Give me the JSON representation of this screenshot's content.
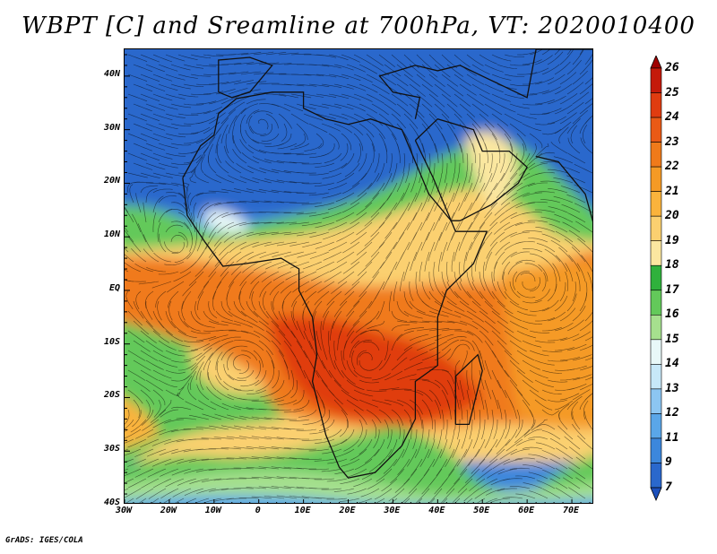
{
  "title": "WBPT [C] and Sreamline at 700hPa, VT: 2020010400",
  "footer": "GrADS: IGES/COLA",
  "map": {
    "variable": "Wet-bulb potential temperature (WBPT)",
    "unit": "C",
    "level": "700hPa",
    "valid_time": "2020010400",
    "lon_range": [
      -30,
      75
    ],
    "lat_range": [
      -40,
      45
    ],
    "lat_ticks": [
      {
        "value": 40,
        "label": "40N"
      },
      {
        "value": 30,
        "label": "30N"
      },
      {
        "value": 20,
        "label": "20N"
      },
      {
        "value": 10,
        "label": "10N"
      },
      {
        "value": 0,
        "label": "EQ"
      },
      {
        "value": -10,
        "label": "10S"
      },
      {
        "value": -20,
        "label": "20S"
      },
      {
        "value": -30,
        "label": "30S"
      },
      {
        "value": -40,
        "label": "40S"
      }
    ],
    "lon_ticks": [
      {
        "value": -30,
        "label": "30W"
      },
      {
        "value": -20,
        "label": "20W"
      },
      {
        "value": -10,
        "label": "10W"
      },
      {
        "value": 0,
        "label": "0"
      },
      {
        "value": 10,
        "label": "10E"
      },
      {
        "value": 20,
        "label": "20E"
      },
      {
        "value": 30,
        "label": "30E"
      },
      {
        "value": 40,
        "label": "40E"
      },
      {
        "value": 50,
        "label": "50E"
      },
      {
        "value": 60,
        "label": "60E"
      },
      {
        "value": 70,
        "label": "70E"
      }
    ]
  },
  "colorbar": {
    "labels": [
      "26",
      "25",
      "24",
      "23",
      "22",
      "21",
      "20",
      "19",
      "18",
      "17",
      "16",
      "15",
      "14",
      "13",
      "12",
      "11",
      "9",
      "7"
    ],
    "colors": [
      "#a00000",
      "#c41a0a",
      "#e03c10",
      "#ea5a16",
      "#f07a1a",
      "#f59a25",
      "#fab33c",
      "#fbd070",
      "#fbe7a0",
      "#2fb13c",
      "#63c95a",
      "#a6e08e",
      "#e8f8f8",
      "#c7e8f8",
      "#8cc6f2",
      "#5aa6e8",
      "#3c87dc",
      "#2a68cc",
      "#1c50bc"
    ]
  }
}
